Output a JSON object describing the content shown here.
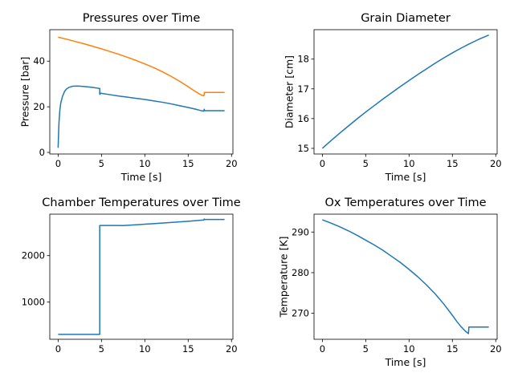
{
  "chart_data": [
    {
      "type": "line",
      "title": "Pressures over Time",
      "xlabel": "Time [s]",
      "ylabel": "Pressure [bar]",
      "xlim": [
        -0.96,
        20.16
      ],
      "ylim": [
        -0.7,
        53.8
      ],
      "xticks": [
        0,
        5,
        10,
        15,
        20
      ],
      "yticks": [
        0,
        20,
        40
      ],
      "grid": false,
      "series": [
        {
          "color": "#1f77b4",
          "x": [
            0,
            0.05,
            0.1,
            0.2,
            0.3,
            0.5,
            0.75,
            1.0,
            1.3,
            1.7,
            2.2,
            2.6,
            3.0,
            3.5,
            4.0,
            4.5,
            4.8,
            4.8,
            4.85,
            4.85,
            5.0,
            6,
            7,
            8,
            9,
            10,
            11,
            12,
            13,
            14,
            15,
            16,
            16.5,
            16.8,
            16.85,
            16.9,
            17.0,
            17.5,
            18,
            18.5,
            19.2
          ],
          "y": [
            2,
            8,
            13,
            18.5,
            21.5,
            24.5,
            26.8,
            27.9,
            28.6,
            29.0,
            29.1,
            29.0,
            28.9,
            28.7,
            28.5,
            28.2,
            28.0,
            25.5,
            25.5,
            26.0,
            25.9,
            25.3,
            24.7,
            24.2,
            23.7,
            23.2,
            22.6,
            22.0,
            21.3,
            20.5,
            19.7,
            18.8,
            18.3,
            18.1,
            18.9,
            18.3,
            18.3,
            18.3,
            18.3,
            18.3,
            18.3
          ]
        },
        {
          "color": "#ff7f0e",
          "x": [
            0,
            1,
            2,
            3,
            4,
            5,
            6,
            7,
            8,
            9,
            10,
            11,
            12,
            13,
            14,
            15,
            15.5,
            16,
            16.5,
            16.8,
            16.85,
            16.85,
            17,
            17.5,
            18,
            18.5,
            19.2
          ],
          "y": [
            50.5,
            49.6,
            48.6,
            47.6,
            46.5,
            45.4,
            44.2,
            43.0,
            41.7,
            40.3,
            38.8,
            37.2,
            35.4,
            33.4,
            31.2,
            28.8,
            27.5,
            26.3,
            25.2,
            24.8,
            25.4,
            26.3,
            26.3,
            26.3,
            26.3,
            26.3,
            26.3
          ]
        }
      ]
    },
    {
      "type": "line",
      "title": "Grain Diameter",
      "xlabel": "Time [s]",
      "ylabel": "Diameter [cm]",
      "xlim": [
        -0.96,
        20.16
      ],
      "ylim": [
        14.81,
        18.99
      ],
      "xticks": [
        0,
        5,
        10,
        15,
        20
      ],
      "yticks": [
        15,
        16,
        17,
        18
      ],
      "grid": false,
      "series": [
        {
          "color": "#1f77b4",
          "x": [
            0,
            1,
            2,
            3,
            4,
            5,
            6,
            7,
            8,
            9,
            10,
            11,
            12,
            13,
            14,
            15,
            16,
            17,
            18,
            19.2
          ],
          "y": [
            15.0,
            15.26,
            15.51,
            15.75,
            15.99,
            16.22,
            16.44,
            16.66,
            16.87,
            17.08,
            17.28,
            17.48,
            17.67,
            17.86,
            18.04,
            18.21,
            18.37,
            18.52,
            18.66,
            18.81
          ]
        }
      ]
    },
    {
      "type": "line",
      "title": "Chamber Temperatures over Time",
      "xlabel": "",
      "ylabel": "",
      "xlim": [
        -0.96,
        20.16
      ],
      "ylim": [
        195,
        2895
      ],
      "xticks": [
        0,
        5,
        10,
        15,
        20
      ],
      "yticks": [
        1000,
        2000
      ],
      "grid": false,
      "series": [
        {
          "color": "#1f77b4",
          "x": [
            0,
            4.8,
            4.8,
            5,
            6,
            7,
            7.5,
            8,
            9,
            10,
            11,
            12,
            13,
            14,
            15,
            16,
            16.8,
            16.85,
            16.9,
            17,
            18,
            19.2
          ],
          "y": [
            300,
            300,
            2650,
            2650,
            2650,
            2650,
            2648,
            2655,
            2665,
            2678,
            2690,
            2702,
            2715,
            2728,
            2742,
            2757,
            2770,
            2790,
            2778,
            2780,
            2780,
            2780
          ]
        }
      ]
    },
    {
      "type": "line",
      "title": "Ox Temperatures over Time",
      "xlabel": "Time [s]",
      "ylabel": "Temperature [K]",
      "xlim": [
        -0.96,
        20.16
      ],
      "ylim": [
        263.6,
        294.4
      ],
      "xticks": [
        0,
        5,
        10,
        15,
        20
      ],
      "yticks": [
        270,
        280,
        290
      ],
      "grid": false,
      "series": [
        {
          "color": "#1f77b4",
          "x": [
            0,
            1,
            2,
            3,
            4,
            5,
            6,
            7,
            8,
            9,
            10,
            11,
            12,
            13,
            14,
            15,
            15.5,
            16,
            16.5,
            16.85,
            16.9,
            17,
            17.5,
            18,
            18.5,
            19.2
          ],
          "y": [
            293.0,
            292.2,
            291.3,
            290.3,
            289.2,
            288.0,
            286.8,
            285.5,
            284.0,
            282.5,
            280.8,
            279.0,
            277.0,
            274.8,
            272.3,
            269.5,
            268.0,
            266.7,
            265.6,
            265.0,
            266.6,
            266.6,
            266.6,
            266.6,
            266.6,
            266.6
          ]
        }
      ]
    }
  ]
}
